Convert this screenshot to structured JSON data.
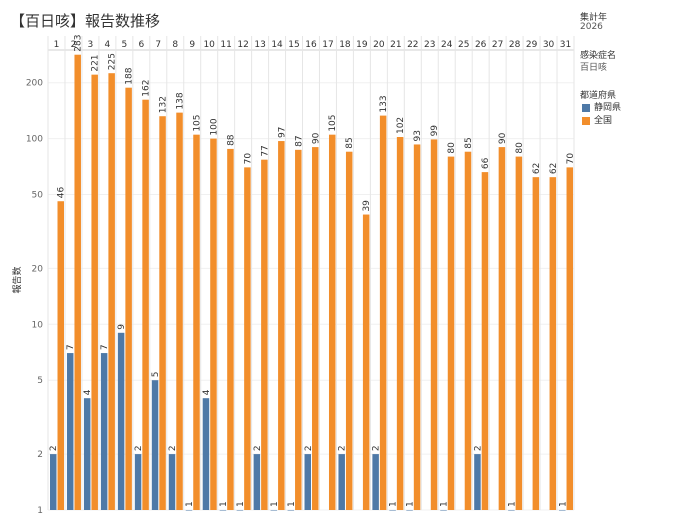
{
  "title": "【百日咳】報告数推移",
  "filters": {
    "year_label": "集計年",
    "year_value": "2026",
    "disease_label": "感染症名",
    "disease_value": "百日咳"
  },
  "legend": {
    "title": "都道府県",
    "items": [
      {
        "name": "静岡県",
        "color": "#4e79a7"
      },
      {
        "name": "全国",
        "color": "#f28e2b"
      }
    ]
  },
  "chart_data": {
    "type": "bar",
    "ylabel": "報告数",
    "yscale": "log",
    "ylim": [
      1,
      300
    ],
    "yticks": [
      1,
      2,
      5,
      10,
      20,
      50,
      100,
      200
    ],
    "categories": [
      "1",
      "2",
      "3",
      "4",
      "5",
      "6",
      "7",
      "8",
      "9",
      "10",
      "11",
      "12",
      "13",
      "14",
      "15",
      "16",
      "17",
      "18",
      "19",
      "20",
      "21",
      "22",
      "23",
      "24",
      "25",
      "26",
      "27",
      "28",
      "29",
      "30",
      "31"
    ],
    "series": [
      {
        "name": "静岡県",
        "color": "#4e79a7",
        "values": [
          2,
          7,
          4,
          7,
          9,
          2,
          5,
          2,
          1,
          4,
          1,
          1,
          2,
          1,
          1,
          2,
          null,
          2,
          null,
          2,
          1,
          1,
          null,
          1,
          null,
          2,
          null,
          1,
          null,
          null,
          1
        ]
      },
      {
        "name": "全国",
        "color": "#f28e2b",
        "values": [
          46,
          283,
          221,
          225,
          188,
          162,
          132,
          138,
          105,
          100,
          88,
          70,
          77,
          97,
          87,
          90,
          105,
          85,
          39,
          133,
          102,
          93,
          99,
          80,
          85,
          66,
          90,
          80,
          62,
          62,
          70
        ]
      }
    ]
  }
}
